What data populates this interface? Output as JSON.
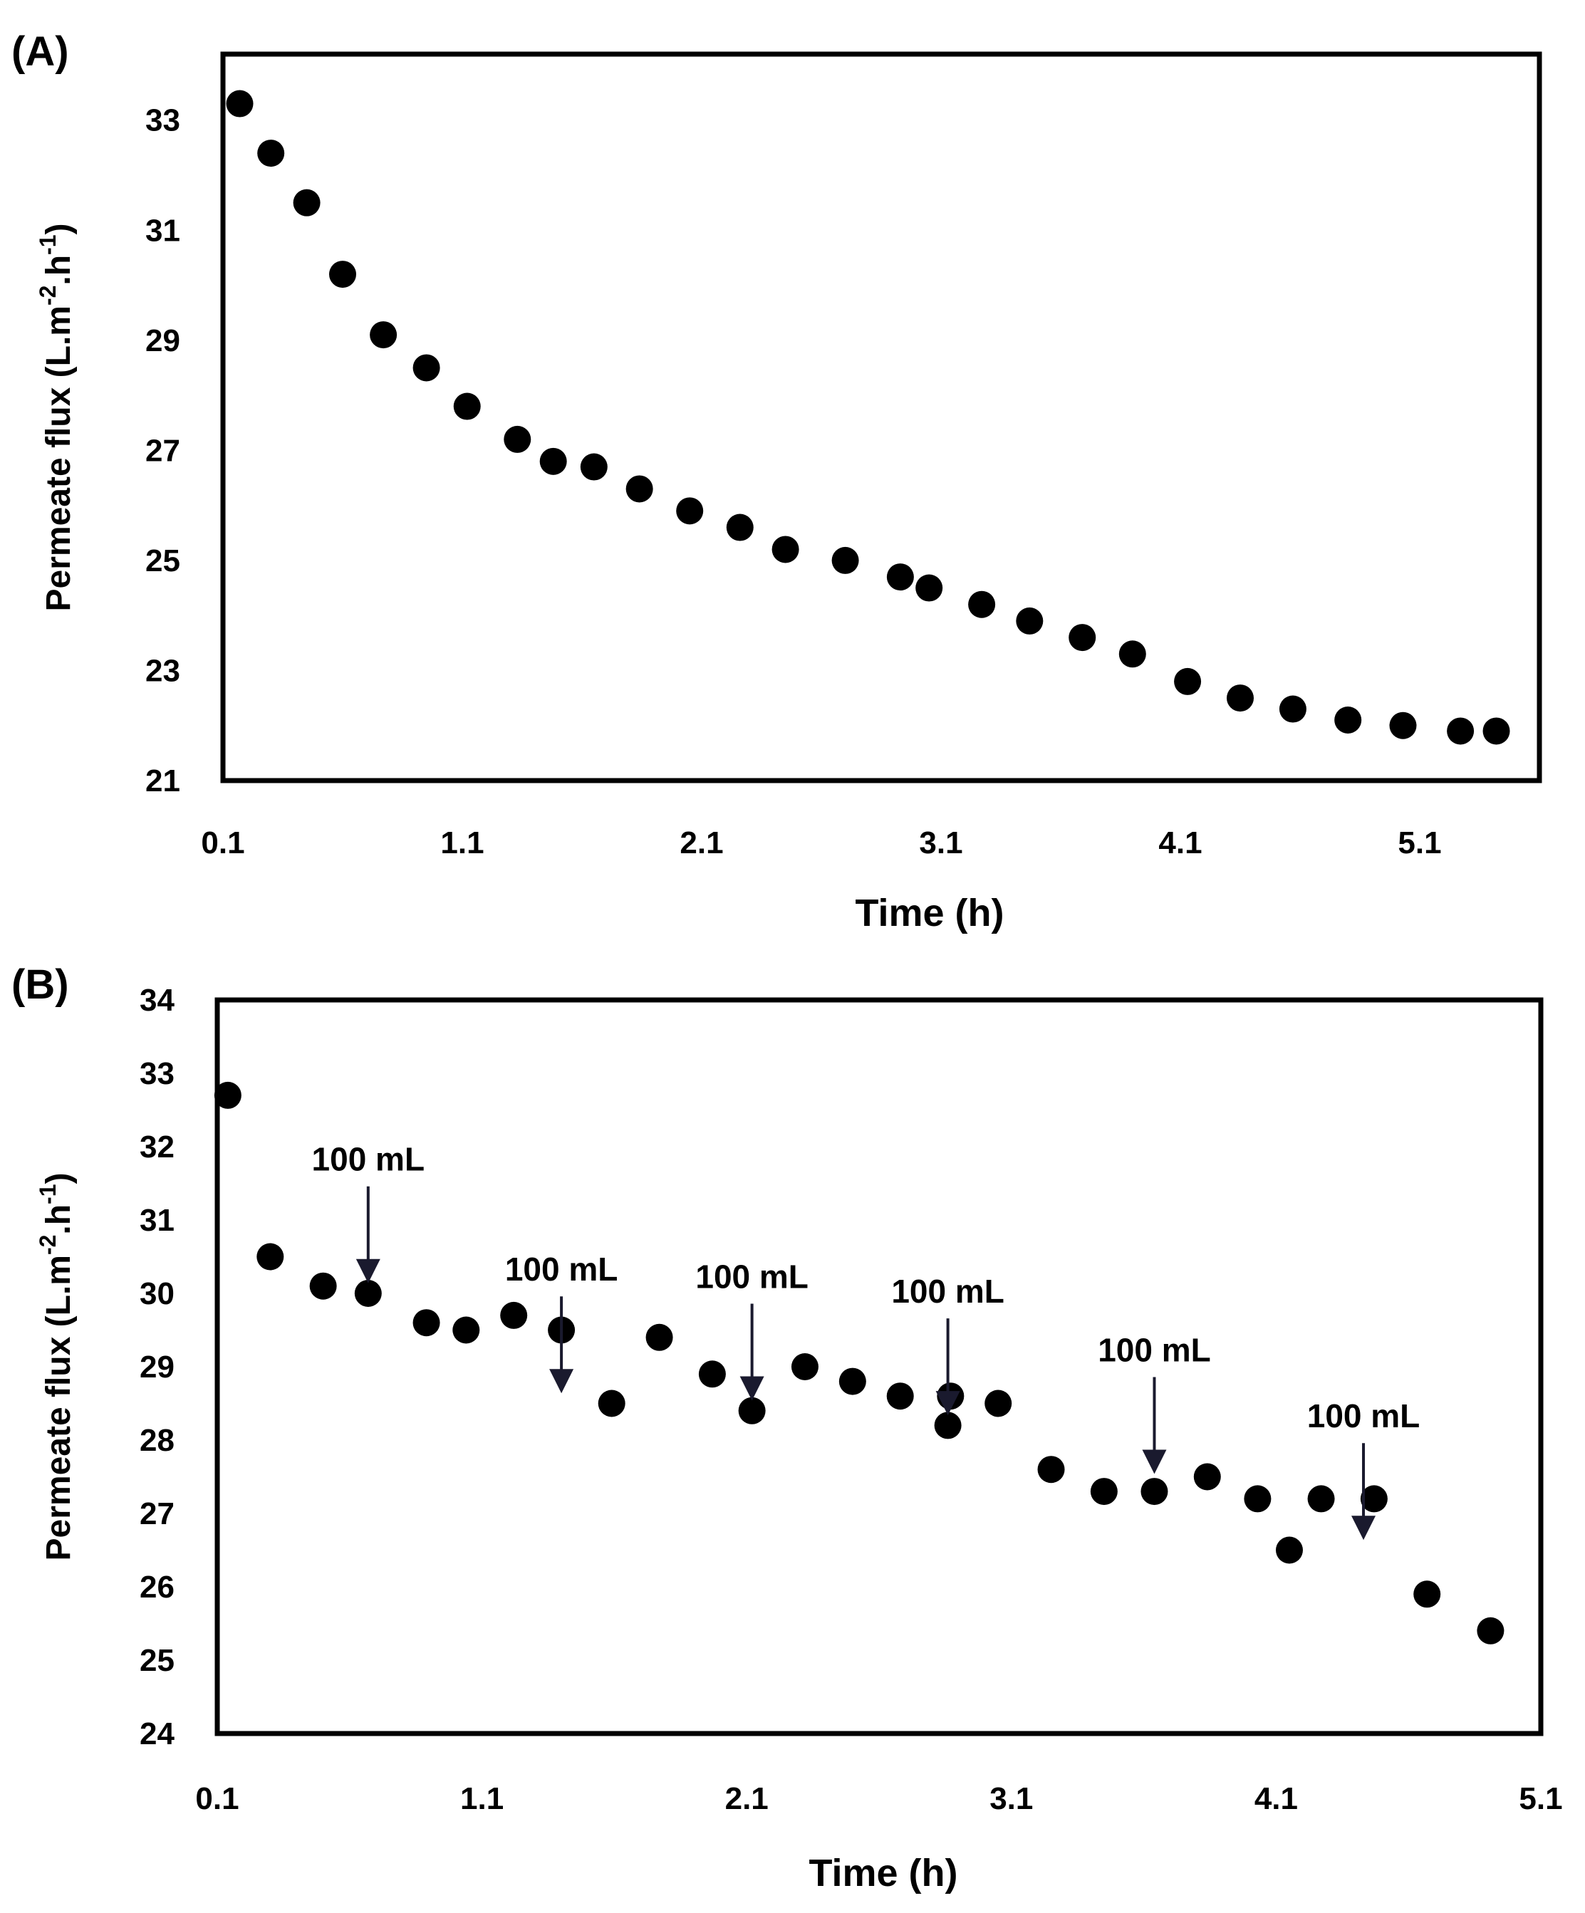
{
  "chart_data": [
    {
      "type": "scatter",
      "panel_label": "(A)",
      "xlabel": "Time (h)",
      "ylabel_main": "Permeate flux (L.m",
      "ylabel_sup1": "-2",
      "ylabel_mid": ".h",
      "ylabel_sup2": "-1",
      "ylabel_end": ")",
      "xlim": [
        0.1,
        5.6
      ],
      "ylim": [
        21,
        34.2
      ],
      "xticks": [
        0.1,
        1.1,
        2.1,
        3.1,
        4.1,
        5.1
      ],
      "xtick_labels": [
        "0.1",
        "1.1",
        "2.1",
        "3.1",
        "4.1",
        "5.1"
      ],
      "yticks": [
        21,
        23,
        25,
        27,
        29,
        31,
        33
      ],
      "ytick_labels": [
        "21",
        "23",
        "25",
        "27",
        "29",
        "31",
        "33"
      ],
      "series": [
        {
          "name": "flux",
          "color": "#000000",
          "x": [
            0.17,
            0.3,
            0.45,
            0.6,
            0.77,
            0.95,
            1.12,
            1.33,
            1.48,
            1.65,
            1.84,
            2.05,
            2.26,
            2.45,
            2.7,
            2.93,
            3.05,
            3.27,
            3.47,
            3.69,
            3.9,
            4.13,
            4.35,
            4.57,
            4.8,
            5.03,
            5.27,
            5.42
          ],
          "y": [
            33.3,
            32.4,
            31.5,
            30.2,
            29.1,
            28.5,
            27.8,
            27.2,
            26.8,
            26.7,
            26.3,
            25.9,
            25.6,
            25.2,
            25.0,
            24.7,
            24.5,
            24.2,
            23.9,
            23.6,
            23.3,
            22.8,
            22.5,
            22.3,
            22.1,
            22.0,
            21.9,
            21.9
          ]
        }
      ]
    },
    {
      "type": "scatter",
      "panel_label": "(B)",
      "xlabel": "Time (h)",
      "ylabel_main": "Permeate flux (L.m",
      "ylabel_sup1": "-2",
      "ylabel_mid": ".h",
      "ylabel_sup2": "-1",
      "ylabel_end": ")",
      "xlim": [
        0.1,
        5.1
      ],
      "ylim": [
        24,
        34
      ],
      "xticks": [
        0.1,
        1.1,
        2.1,
        3.1,
        4.1,
        5.1
      ],
      "xtick_labels": [
        "0.1",
        "1.1",
        "2.1",
        "3.1",
        "4.1",
        "5.1"
      ],
      "yticks": [
        24,
        25,
        26,
        27,
        28,
        29,
        30,
        31,
        32,
        33,
        34
      ],
      "ytick_labels": [
        "24",
        "25",
        "26",
        "27",
        "28",
        "29",
        "30",
        "31",
        "32",
        "33",
        "34"
      ],
      "series": [
        {
          "name": "flux",
          "color": "#000000",
          "x": [
            0.14,
            0.3,
            0.5,
            0.67,
            0.89,
            1.04,
            1.22,
            1.4,
            1.59,
            1.77,
            1.97,
            2.12,
            2.32,
            2.5,
            2.68,
            2.86,
            2.87,
            3.05,
            3.25,
            3.45,
            3.64,
            3.84,
            4.03,
            4.15,
            4.27,
            4.47,
            4.67,
            4.91
          ],
          "y": [
            32.7,
            30.5,
            30.1,
            30.0,
            29.6,
            29.5,
            29.7,
            29.5,
            28.5,
            29.4,
            28.9,
            28.4,
            29.0,
            28.8,
            28.6,
            28.2,
            28.6,
            28.5,
            27.6,
            27.3,
            27.3,
            27.5,
            27.2,
            26.5,
            27.2,
            27.2,
            25.9,
            25.4
          ]
        }
      ],
      "annotations": [
        {
          "text": "100 mL",
          "x": 0.67,
          "y": 30.1
        },
        {
          "text": "100 mL",
          "x": 1.4,
          "y": 28.6
        },
        {
          "text": "100 mL",
          "x": 2.12,
          "y": 28.5
        },
        {
          "text": "100 mL",
          "x": 2.86,
          "y": 28.3
        },
        {
          "text": "100 mL",
          "x": 3.64,
          "y": 27.5
        },
        {
          "text": "100 mL",
          "x": 4.43,
          "y": 26.6
        }
      ]
    }
  ]
}
